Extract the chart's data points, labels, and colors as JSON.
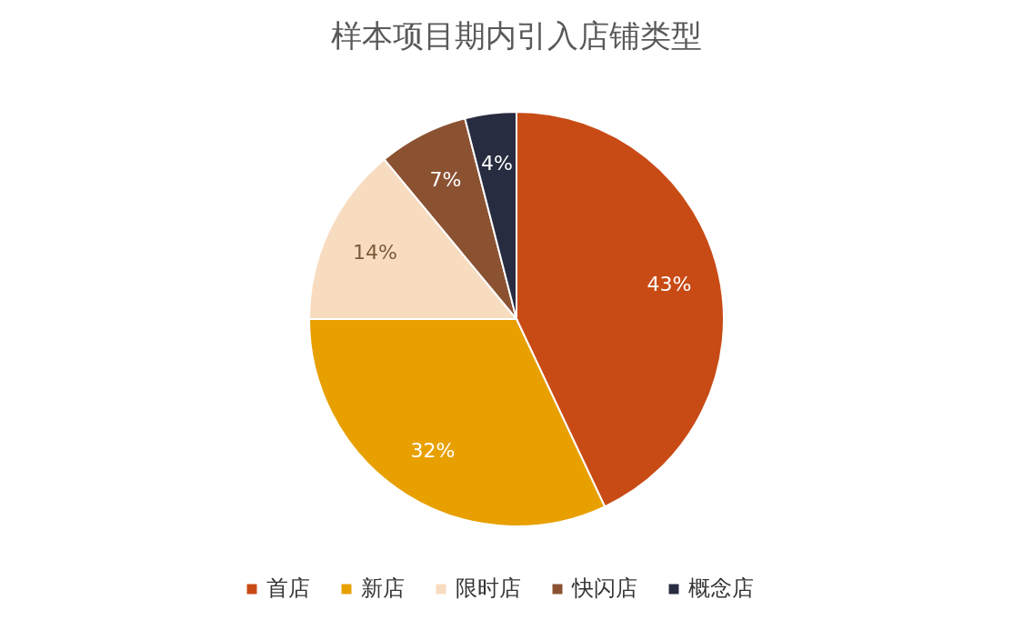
{
  "chart_data": {
    "type": "pie",
    "title": "样本项目期内引入店铺类型",
    "categories": [
      "首店",
      "新店",
      "限时店",
      "快闪店",
      "概念店"
    ],
    "values": [
      43,
      32,
      14,
      7,
      4
    ],
    "value_labels": [
      "43%",
      "32%",
      "14%",
      "7%",
      "4%"
    ],
    "colors": [
      "#c84b16",
      "#e8a000",
      "#f8dcc0",
      "#8b5232",
      "#282c40"
    ],
    "legend": "bottom"
  }
}
